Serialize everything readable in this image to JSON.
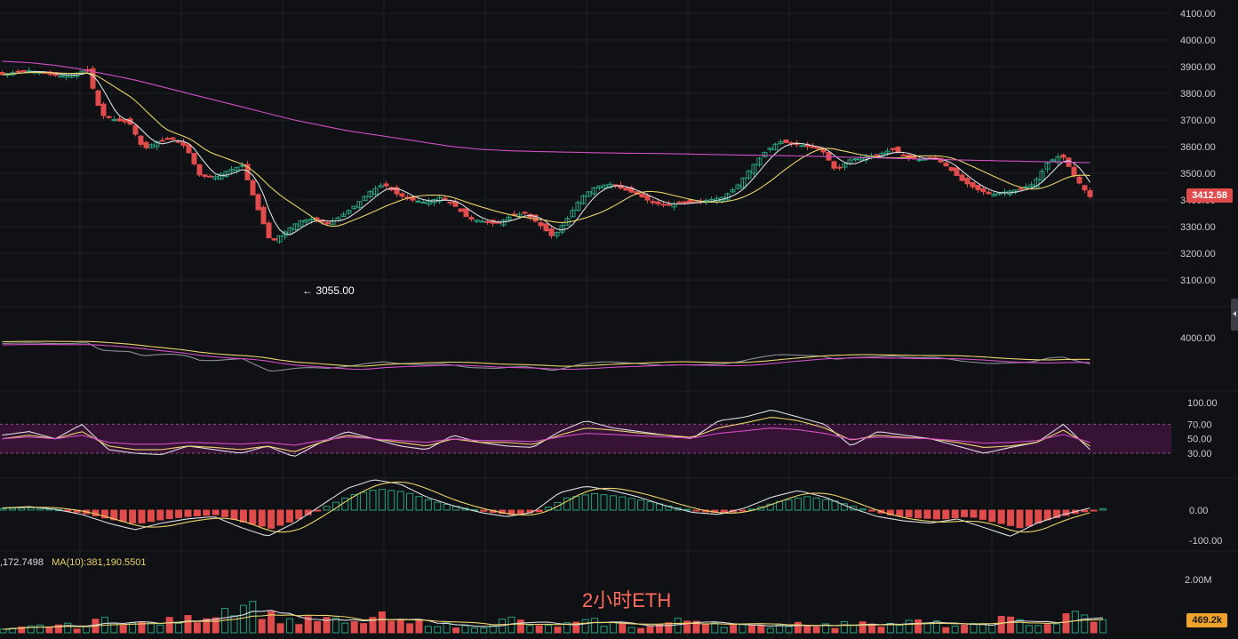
{
  "title": "2小时ETH",
  "price_badge": "3412.58",
  "low_marker": "← 3055.00",
  "volume_badge": "469.2k",
  "ma_line": {
    "prefix": ",172.7498",
    "ma10": "MA(10):381,190.5501"
  },
  "colors": {
    "up": "#26a17b",
    "down": "#e04b4b",
    "ma_white": "#d9dbe0",
    "ma_yellow": "#e9d36a",
    "ma_pink": "#d04fc6",
    "rsi_band": "#3b1438",
    "background": "#101114"
  },
  "chart_data": {
    "type": "candlestick",
    "price_axis": {
      "ticks": [
        "4100.00",
        "4000.00",
        "3900.00",
        "3800.00",
        "3700.00",
        "3600.00",
        "3500.00",
        "3400.00",
        "3300.00",
        "3200.00",
        "3100.00"
      ],
      "range": [
        3050,
        4110
      ]
    },
    "secondary_axis": {
      "ticks": [
        "4000.00"
      ]
    },
    "rsi_axis": {
      "ticks": [
        "100.00",
        "70.00",
        "50.00",
        "30.00"
      ],
      "band": [
        30,
        70
      ]
    },
    "macd_axis": {
      "ticks": [
        "0.00",
        "-100.00"
      ]
    },
    "volume_axis": {
      "ticks": [
        "2.00M"
      ]
    },
    "low": 3055.0,
    "last": 3412.58,
    "close_path": [
      3870,
      3880,
      3885,
      3875,
      3865,
      3870,
      3890,
      3720,
      3700,
      3690,
      3590,
      3620,
      3630,
      3600,
      3490,
      3485,
      3510,
      3530,
      3380,
      3240,
      3280,
      3320,
      3330,
      3310,
      3340,
      3380,
      3430,
      3460,
      3420,
      3400,
      3390,
      3410,
      3380,
      3330,
      3320,
      3310,
      3340,
      3350,
      3310,
      3260,
      3330,
      3410,
      3450,
      3460,
      3440,
      3420,
      3390,
      3380,
      3390,
      3390,
      3400,
      3410,
      3450,
      3520,
      3580,
      3620,
      3610,
      3600,
      3590,
      3510,
      3550,
      3560,
      3570,
      3590,
      3560,
      3550,
      3560,
      3520,
      3470,
      3440,
      3420,
      3430,
      3440,
      3460,
      3540,
      3570,
      3480,
      3412.58
    ],
    "ma_slow_path": [
      3920,
      3915,
      3905,
      3890,
      3870,
      3850,
      3825,
      3800,
      3775,
      3750,
      3725,
      3700,
      3680,
      3660,
      3645,
      3630,
      3615,
      3600,
      3590,
      3585,
      3582,
      3580,
      3578,
      3576,
      3575,
      3574,
      3572,
      3570,
      3568,
      3567,
      3565,
      3563,
      3560,
      3558,
      3555,
      3553,
      3550,
      3548,
      3546,
      3544,
      3542,
      3540
    ],
    "rsi_white_path": [
      55,
      60,
      50,
      70,
      35,
      30,
      28,
      40,
      35,
      30,
      40,
      25,
      45,
      60,
      50,
      40,
      35,
      55,
      45,
      40,
      38,
      60,
      75,
      65,
      60,
      55,
      50,
      75,
      80,
      90,
      80,
      70,
      40,
      60,
      55,
      50,
      40,
      30,
      38,
      45,
      70,
      35
    ],
    "rsi_yellow_path": [
      50,
      55,
      50,
      60,
      40,
      35,
      35,
      40,
      38,
      35,
      40,
      32,
      45,
      55,
      50,
      45,
      40,
      50,
      45,
      45,
      42,
      55,
      65,
      62,
      58,
      55,
      52,
      65,
      72,
      80,
      75,
      65,
      48,
      55,
      52,
      50,
      45,
      38,
      40,
      45,
      62,
      40
    ],
    "macd_hist_path": [
      5,
      8,
      2,
      -10,
      -30,
      -45,
      -30,
      -20,
      -15,
      -40,
      -60,
      -30,
      10,
      50,
      70,
      60,
      30,
      10,
      -5,
      -15,
      -5,
      40,
      55,
      45,
      30,
      10,
      -5,
      -10,
      5,
      30,
      45,
      30,
      5,
      -15,
      -25,
      -30,
      -20,
      -40,
      -60,
      -30,
      -10,
      5
    ],
    "volume_path": [
      0.1,
      0.2,
      0.3,
      0.2,
      0.6,
      0.3,
      0.4,
      0.5,
      0.8,
      1.2,
      0.6,
      0.4,
      0.5,
      0.3,
      0.6,
      0.3,
      0.4,
      0.2,
      0.3,
      0.5,
      0.2,
      0.3,
      0.4,
      0.3,
      0.2,
      0.4,
      0.5,
      0.3,
      0.2,
      0.3,
      0.4,
      0.2,
      0.5,
      0.3,
      0.4,
      0.3,
      0.2,
      0.5,
      0.4,
      0.3,
      0.7,
      0.4
    ]
  }
}
